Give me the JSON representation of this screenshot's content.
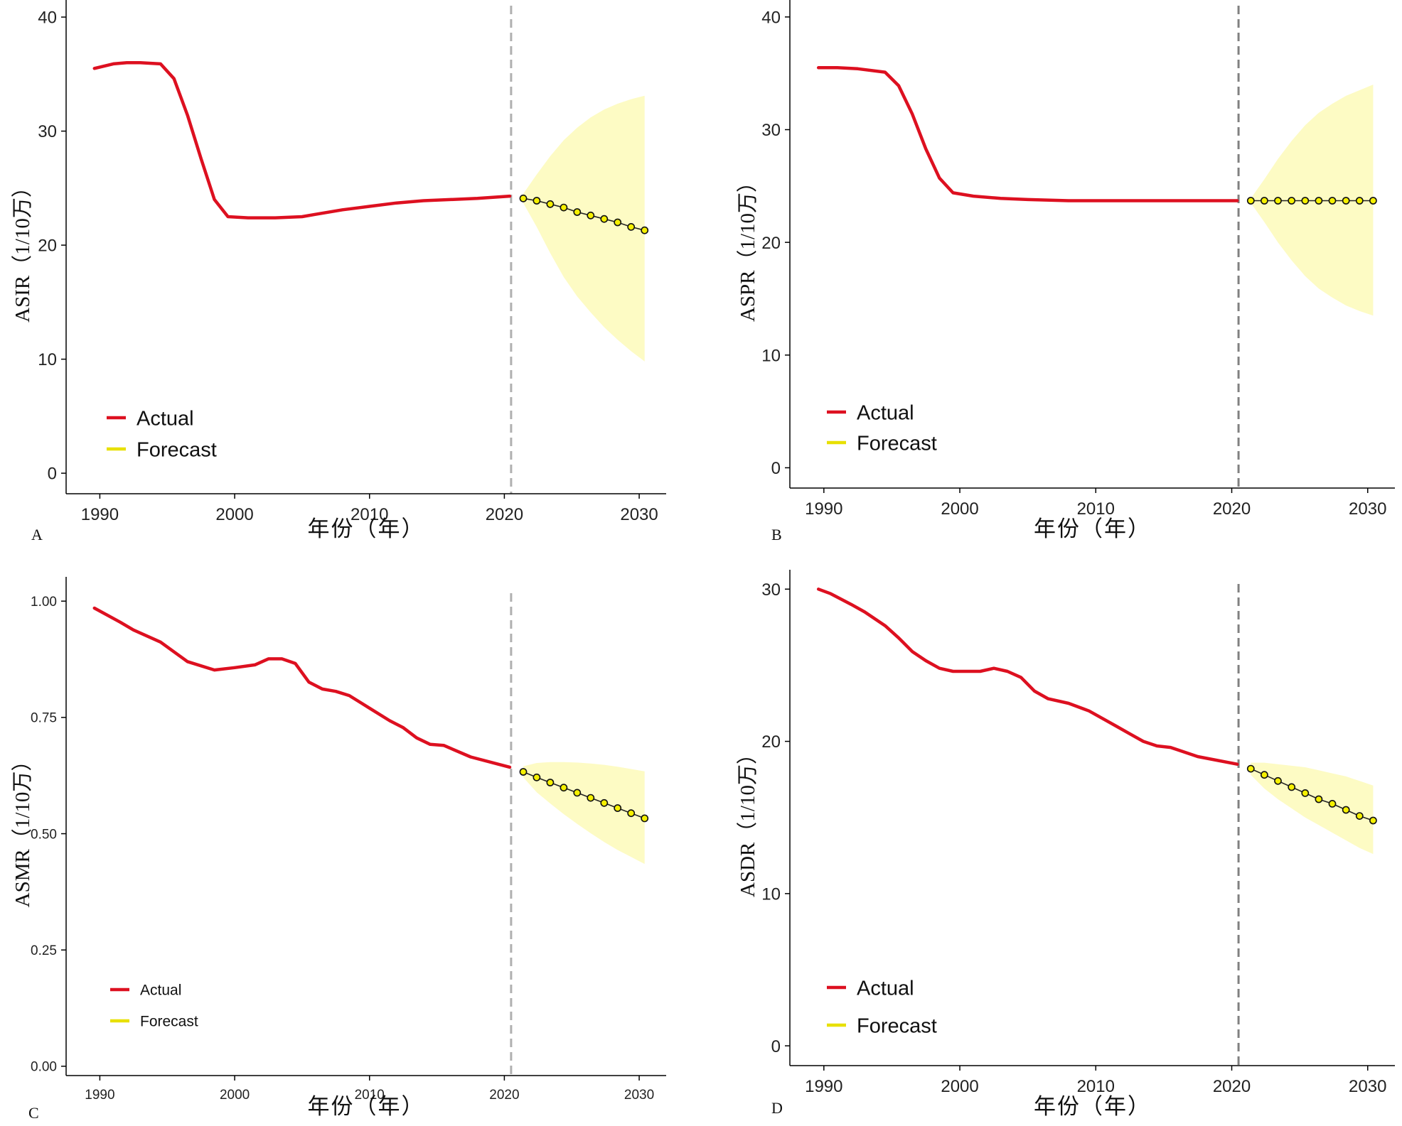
{
  "figure": {
    "x_axis_title": "年份（年）",
    "legend_actual": "Actual",
    "legend_forecast": "Forecast",
    "colors": {
      "actual": "#dd1020",
      "forecast_marker": "#f5f000",
      "forecast_band": "#fdfbc4",
      "forecast_legend": "#e8e000",
      "divider": "#b0b0b0",
      "axis": "#000000"
    }
  },
  "chart_data": [
    {
      "panel": "A",
      "type": "line",
      "ylabel": "ASIR（1/10万）",
      "xlim": [
        1987.5,
        2032
      ],
      "ylim": [
        -1.8,
        41
      ],
      "x_ticks": [
        1990,
        2000,
        2010,
        2020,
        2030
      ],
      "y_ticks": [
        0,
        10,
        20,
        30,
        40
      ],
      "y_tick_labels": [
        "0",
        "10",
        "20",
        "30",
        "40"
      ],
      "divider_x": 2020.5,
      "legend_position": "bottom-left",
      "actual": {
        "x": [
          1989.6,
          1991,
          1992,
          1993,
          1994.5,
          1995.5,
          1996.5,
          1997.5,
          1998.5,
          1999.5,
          2001,
          2003,
          2005,
          2006,
          2008,
          2010,
          2012,
          2014,
          2016,
          2018,
          2020.4
        ],
        "y": [
          35.5,
          35.9,
          36.0,
          36.0,
          35.9,
          34.6,
          31.4,
          27.6,
          24.0,
          22.5,
          22.4,
          22.4,
          22.5,
          22.7,
          23.1,
          23.4,
          23.7,
          23.9,
          24.0,
          24.1,
          24.3
        ]
      },
      "forecast": {
        "x": [
          2021.4,
          2022.4,
          2023.4,
          2024.4,
          2025.4,
          2026.4,
          2027.4,
          2028.4,
          2029.4,
          2030.4
        ],
        "y": [
          24.1,
          23.9,
          23.6,
          23.3,
          22.9,
          22.6,
          22.3,
          22.0,
          21.6,
          21.3
        ],
        "upper": [
          24.5,
          26.2,
          27.8,
          29.2,
          30.3,
          31.2,
          31.9,
          32.4,
          32.8,
          33.1
        ],
        "lower": [
          23.7,
          21.6,
          19.3,
          17.2,
          15.5,
          14.1,
          12.8,
          11.7,
          10.7,
          9.8
        ]
      }
    },
    {
      "panel": "B",
      "type": "line",
      "ylabel": "ASPR（1/10万）",
      "xlim": [
        1987.5,
        2032
      ],
      "ylim": [
        -1.8,
        41
      ],
      "x_ticks": [
        1990,
        2000,
        2010,
        2020,
        2030
      ],
      "y_ticks": [
        0,
        10,
        20,
        30,
        40
      ],
      "y_tick_labels": [
        "0",
        "10",
        "20",
        "30",
        "40"
      ],
      "divider_x": 2020.5,
      "legend_position": "bottom-left",
      "actual": {
        "x": [
          1989.6,
          1991,
          1992.5,
          1994.5,
          1995.5,
          1996.5,
          1997.5,
          1998.5,
          1999.5,
          2001,
          2003,
          2005,
          2008,
          2012,
          2016,
          2020.4
        ],
        "y": [
          35.5,
          35.5,
          35.4,
          35.1,
          33.9,
          31.4,
          28.3,
          25.7,
          24.4,
          24.1,
          23.9,
          23.8,
          23.7,
          23.7,
          23.7,
          23.7
        ]
      },
      "forecast": {
        "x": [
          2021.4,
          2022.4,
          2023.4,
          2024.4,
          2025.4,
          2026.4,
          2027.4,
          2028.4,
          2029.4,
          2030.4
        ],
        "y": [
          23.7,
          23.7,
          23.7,
          23.7,
          23.7,
          23.7,
          23.7,
          23.7,
          23.7,
          23.7
        ],
        "upper": [
          23.9,
          25.6,
          27.4,
          29.0,
          30.4,
          31.5,
          32.3,
          33.0,
          33.5,
          34.0
        ],
        "lower": [
          23.5,
          21.8,
          20.0,
          18.4,
          17.0,
          15.9,
          15.1,
          14.4,
          13.9,
          13.5
        ]
      }
    },
    {
      "panel": "C",
      "type": "line",
      "ylabel": "ASMR（1/10万）",
      "xlim": [
        1987.5,
        2032
      ],
      "ylim": [
        -0.02,
        1.04
      ],
      "x_ticks": [
        1990,
        2000,
        2010,
        2020,
        2030
      ],
      "y_ticks": [
        0,
        0.25,
        0.5,
        0.75,
        1.0
      ],
      "y_tick_labels": [
        "0.00",
        "0.25",
        "0.50",
        "0.75",
        "1.00"
      ],
      "divider_x": 2020.5,
      "legend_position": "bottom-left",
      "actual": {
        "x": [
          1989.6,
          1991.5,
          1992.5,
          1994.5,
          1996.5,
          1998.5,
          2000,
          2001.5,
          2002.5,
          2003.5,
          2004.5,
          2005.5,
          2006.5,
          2007.5,
          2008.5,
          2010,
          2011.5,
          2012.5,
          2013.5,
          2014.5,
          2015.5,
          2017.5,
          2020.4
        ],
        "y": [
          0.985,
          0.955,
          0.938,
          0.912,
          0.87,
          0.852,
          0.857,
          0.863,
          0.876,
          0.876,
          0.866,
          0.826,
          0.811,
          0.806,
          0.797,
          0.77,
          0.743,
          0.728,
          0.706,
          0.692,
          0.69,
          0.665,
          0.643
        ]
      },
      "forecast": {
        "x": [
          2021.4,
          2022.4,
          2023.4,
          2024.4,
          2025.4,
          2026.4,
          2027.4,
          2028.4,
          2029.4,
          2030.4
        ],
        "y": [
          0.633,
          0.621,
          0.61,
          0.599,
          0.588,
          0.577,
          0.566,
          0.555,
          0.544,
          0.533
        ],
        "upper": [
          0.645,
          0.652,
          0.654,
          0.654,
          0.653,
          0.651,
          0.648,
          0.644,
          0.639,
          0.634
        ],
        "lower": [
          0.621,
          0.589,
          0.565,
          0.542,
          0.521,
          0.501,
          0.482,
          0.465,
          0.45,
          0.435
        ]
      }
    },
    {
      "panel": "D",
      "type": "line",
      "ylabel": "ASDR（1/10万）",
      "xlim": [
        1987.5,
        2032
      ],
      "ylim": [
        -1.3,
        30.9
      ],
      "x_ticks": [
        1990,
        2000,
        2010,
        2020,
        2030
      ],
      "y_ticks": [
        0,
        10,
        20,
        30
      ],
      "y_tick_labels": [
        "0",
        "10",
        "20",
        "30"
      ],
      "divider_x": 2020.5,
      "legend_position": "bottom-left",
      "actual": {
        "x": [
          1989.6,
          1990.5,
          1992,
          1993,
          1994.5,
          1995.5,
          1996.5,
          1997.5,
          1998.5,
          1999.5,
          2001.5,
          2002.5,
          2003.5,
          2004.5,
          2005.5,
          2006.5,
          2008,
          2009.5,
          2011.5,
          2012.5,
          2013.5,
          2014.5,
          2015.5,
          2017.5,
          2020.4
        ],
        "y": [
          30.0,
          29.7,
          29.0,
          28.5,
          27.6,
          26.8,
          25.9,
          25.3,
          24.8,
          24.6,
          24.6,
          24.8,
          24.6,
          24.2,
          23.3,
          22.8,
          22.5,
          22.0,
          21.0,
          20.5,
          20.0,
          19.7,
          19.6,
          19.0,
          18.5
        ]
      },
      "forecast": {
        "x": [
          2021.4,
          2022.4,
          2023.4,
          2024.4,
          2025.4,
          2026.4,
          2027.4,
          2028.4,
          2029.4,
          2030.4
        ],
        "y": [
          18.2,
          17.8,
          17.4,
          17.0,
          16.6,
          16.2,
          15.9,
          15.5,
          15.1,
          14.8
        ],
        "upper": [
          18.6,
          18.6,
          18.5,
          18.4,
          18.3,
          18.1,
          17.9,
          17.7,
          17.4,
          17.1
        ],
        "lower": [
          17.8,
          16.9,
          16.2,
          15.6,
          15.0,
          14.5,
          14.0,
          13.5,
          13.0,
          12.6
        ]
      }
    }
  ],
  "panels": [
    {
      "label": "A",
      "chart_index": 0,
      "plot": {
        "x0": 95,
        "x1": 935,
        "y0": 0,
        "y1": 695
      },
      "ylabel_x": 30,
      "panel_label_pos": {
        "x": 44,
        "y": 760
      },
      "legend_pos": {
        "x": 150,
        "y": 588
      },
      "legend_gap": 44,
      "legend_font": 29,
      "divider_top": 8,
      "tick_font": 24
    },
    {
      "label": "B",
      "chart_index": 1,
      "plot": {
        "x0": 1113,
        "x1": 1960,
        "y0": 0,
        "y1": 687
      },
      "ylabel_x": 1052,
      "panel_label_pos": {
        "x": 1085,
        "y": 760
      },
      "legend_pos": {
        "x": 1163,
        "y": 580
      },
      "legend_gap": 43,
      "legend_font": 29,
      "divider_top": 8,
      "tick_font": 24
    },
    {
      "label": "C",
      "chart_index": 2,
      "plot": {
        "x0": 95,
        "x1": 935,
        "y0": 810,
        "y1": 1514
      },
      "ylabel_x": 30,
      "panel_label_pos": {
        "x": 40,
        "y": 1574
      },
      "legend_pos": {
        "x": 155,
        "y": 1393
      },
      "legend_gap": 44,
      "legend_font": 21,
      "divider_top": 835,
      "tick_font": 19
    },
    {
      "label": "D",
      "chart_index": 3,
      "plot": {
        "x0": 1113,
        "x1": 1960,
        "y0": 800,
        "y1": 1500
      },
      "ylabel_x": 1052,
      "panel_label_pos": {
        "x": 1085,
        "y": 1567
      },
      "legend_pos": {
        "x": 1163,
        "y": 1390
      },
      "legend_gap": 53,
      "legend_font": 29,
      "divider_top": 822,
      "tick_font": 24
    }
  ]
}
